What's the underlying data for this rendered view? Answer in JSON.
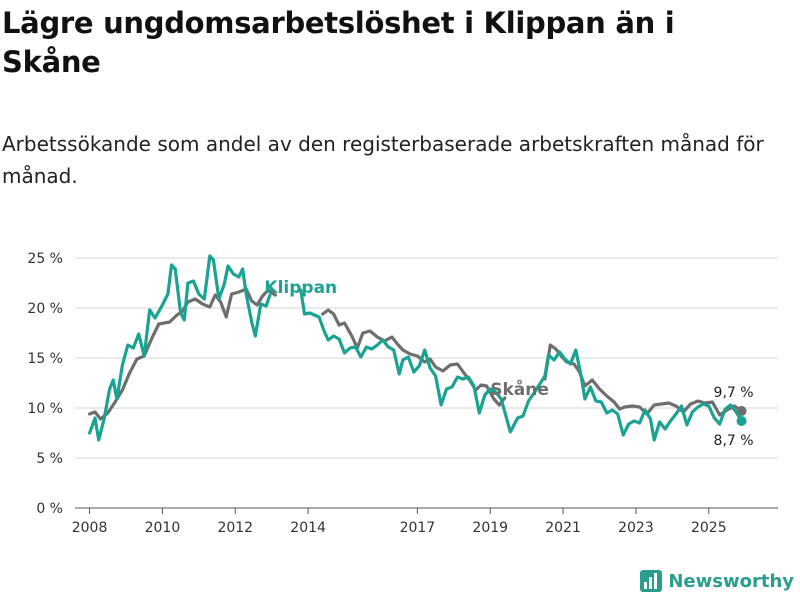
{
  "title": "Lägre ungdomsarbetslöshet i Klippan än i Skåne",
  "subtitle": "Arbetssökande som andel av den registerbaserade arbetskraften månad för månad.",
  "brand": "Newsworthy",
  "colors": {
    "klippan": "#1aa393",
    "skane": "#6e6e6e",
    "grid": "#d4d4d4"
  },
  "chart_data": {
    "type": "line",
    "title": "Lägre ungdomsarbetslöshet i Klippan än i Skåne",
    "xlabel": "",
    "ylabel": "",
    "ylim": [
      0,
      25
    ],
    "xlim": [
      2007.6,
      2026.9
    ],
    "y_ticks": [
      0,
      5,
      10,
      15,
      20,
      25
    ],
    "y_tick_labels": [
      "0 %",
      "5 %",
      "10 %",
      "15 %",
      "20 %",
      "25 %"
    ],
    "x_ticks": [
      2008,
      2010,
      2012,
      2014,
      2017,
      2019,
      2021,
      2023,
      2025
    ],
    "x_tick_labels": [
      "2008",
      "2010",
      "2012",
      "2014",
      "2017",
      "2019",
      "2021",
      "2023",
      "2025"
    ],
    "series": [
      {
        "name": "Skåne",
        "label": "Skåne",
        "end_label": "9,7 %",
        "points": [
          [
            2008.0,
            9.4
          ],
          [
            2008.15,
            9.6
          ],
          [
            2008.3,
            8.9
          ],
          [
            2008.5,
            9.5
          ],
          [
            2008.7,
            10.6
          ],
          [
            2008.9,
            11.8
          ],
          [
            2009.1,
            13.5
          ],
          [
            2009.3,
            14.9
          ],
          [
            2009.5,
            15.2
          ],
          [
            2009.7,
            16.9
          ],
          [
            2009.9,
            18.4
          ],
          [
            2010.2,
            18.6
          ],
          [
            2010.4,
            19.3
          ],
          [
            2010.55,
            19.7
          ],
          [
            2010.7,
            20.6
          ],
          [
            2010.9,
            20.9
          ],
          [
            2011.1,
            20.4
          ],
          [
            2011.3,
            20.1
          ],
          [
            2011.45,
            21.3
          ],
          [
            2011.6,
            20.6
          ],
          [
            2011.75,
            19.1
          ],
          [
            2011.9,
            21.4
          ],
          [
            2012.1,
            21.6
          ],
          [
            2012.3,
            21.9
          ],
          [
            2012.45,
            20.7
          ],
          [
            2012.6,
            20.3
          ],
          [
            2012.75,
            21.2
          ],
          [
            2012.9,
            21.8
          ],
          [
            2013.1,
            21.3
          ],
          [
            2014.4,
            19.4
          ],
          [
            2014.55,
            19.8
          ],
          [
            2014.7,
            19.4
          ],
          [
            2014.85,
            18.3
          ],
          [
            2015.0,
            18.5
          ],
          [
            2015.2,
            17.2
          ],
          [
            2015.35,
            16.0
          ],
          [
            2015.5,
            17.5
          ],
          [
            2015.7,
            17.7
          ],
          [
            2015.9,
            17.1
          ],
          [
            2016.1,
            16.7
          ],
          [
            2016.3,
            17.1
          ],
          [
            2016.45,
            16.4
          ],
          [
            2016.6,
            15.8
          ],
          [
            2016.8,
            15.4
          ],
          [
            2017.0,
            15.2
          ],
          [
            2017.2,
            14.6
          ],
          [
            2017.35,
            14.9
          ],
          [
            2017.5,
            14.1
          ],
          [
            2017.7,
            13.7
          ],
          [
            2017.9,
            14.3
          ],
          [
            2018.1,
            14.4
          ],
          [
            2018.3,
            13.4
          ],
          [
            2018.45,
            12.7
          ],
          [
            2018.6,
            11.8
          ],
          [
            2018.75,
            12.3
          ],
          [
            2018.9,
            12.2
          ],
          [
            2019.1,
            10.9
          ],
          [
            2019.25,
            10.3
          ],
          [
            2019.4,
            11.0
          ],
          [
            2020.5,
            12.9
          ],
          [
            2020.65,
            16.3
          ],
          [
            2020.8,
            15.9
          ],
          [
            2020.95,
            15.2
          ],
          [
            2021.1,
            14.6
          ],
          [
            2021.3,
            14.4
          ],
          [
            2021.45,
            13.6
          ],
          [
            2021.6,
            12.2
          ],
          [
            2021.8,
            12.8
          ],
          [
            2022.0,
            11.9
          ],
          [
            2022.2,
            11.2
          ],
          [
            2022.4,
            10.6
          ],
          [
            2022.55,
            9.9
          ],
          [
            2022.7,
            10.1
          ],
          [
            2022.9,
            10.2
          ],
          [
            2023.1,
            10.1
          ],
          [
            2023.3,
            9.4
          ],
          [
            2023.5,
            10.3
          ],
          [
            2023.7,
            10.4
          ],
          [
            2023.9,
            10.5
          ],
          [
            2024.1,
            10.2
          ],
          [
            2024.3,
            9.6
          ],
          [
            2024.5,
            10.4
          ],
          [
            2024.7,
            10.7
          ],
          [
            2024.9,
            10.5
          ],
          [
            2025.1,
            10.6
          ],
          [
            2025.3,
            9.3
          ],
          [
            2025.5,
            9.8
          ],
          [
            2025.7,
            10.2
          ],
          [
            2025.9,
            9.7
          ]
        ]
      },
      {
        "name": "Klippan",
        "label": "Klippan",
        "end_label": "8,7 %",
        "points": [
          [
            2008.0,
            7.5
          ],
          [
            2008.15,
            9.0
          ],
          [
            2008.25,
            6.8
          ],
          [
            2008.4,
            8.9
          ],
          [
            2008.55,
            11.9
          ],
          [
            2008.65,
            12.8
          ],
          [
            2008.75,
            10.9
          ],
          [
            2008.9,
            14.3
          ],
          [
            2009.05,
            16.3
          ],
          [
            2009.2,
            16.0
          ],
          [
            2009.35,
            17.4
          ],
          [
            2009.5,
            15.2
          ],
          [
            2009.65,
            19.8
          ],
          [
            2009.8,
            19.0
          ],
          [
            2010.0,
            20.3
          ],
          [
            2010.15,
            21.4
          ],
          [
            2010.25,
            24.3
          ],
          [
            2010.35,
            23.9
          ],
          [
            2010.5,
            19.5
          ],
          [
            2010.6,
            18.8
          ],
          [
            2010.7,
            22.5
          ],
          [
            2010.85,
            22.7
          ],
          [
            2011.0,
            21.4
          ],
          [
            2011.15,
            20.9
          ],
          [
            2011.3,
            25.2
          ],
          [
            2011.4,
            24.8
          ],
          [
            2011.55,
            20.9
          ],
          [
            2011.7,
            22.4
          ],
          [
            2011.8,
            24.2
          ],
          [
            2011.95,
            23.4
          ],
          [
            2012.1,
            23.1
          ],
          [
            2012.2,
            23.9
          ],
          [
            2012.3,
            21.4
          ],
          [
            2012.45,
            18.6
          ],
          [
            2012.55,
            17.2
          ],
          [
            2012.7,
            20.4
          ],
          [
            2012.85,
            20.2
          ],
          [
            2012.95,
            21.3
          ],
          [
            2013.8,
            21.8
          ],
          [
            2013.9,
            19.4
          ],
          [
            2014.05,
            19.5
          ],
          [
            2014.3,
            19.1
          ],
          [
            2014.45,
            17.6
          ],
          [
            2014.55,
            16.8
          ],
          [
            2014.7,
            17.2
          ],
          [
            2014.85,
            16.9
          ],
          [
            2015.0,
            15.5
          ],
          [
            2015.15,
            16.0
          ],
          [
            2015.3,
            16.1
          ],
          [
            2015.45,
            15.1
          ],
          [
            2015.6,
            16.1
          ],
          [
            2015.75,
            15.9
          ],
          [
            2015.9,
            16.3
          ],
          [
            2016.05,
            16.8
          ],
          [
            2016.2,
            16.1
          ],
          [
            2016.35,
            15.8
          ],
          [
            2016.5,
            13.4
          ],
          [
            2016.6,
            14.8
          ],
          [
            2016.75,
            15.1
          ],
          [
            2016.9,
            13.6
          ],
          [
            2017.05,
            14.2
          ],
          [
            2017.2,
            15.8
          ],
          [
            2017.35,
            14.0
          ],
          [
            2017.5,
            13.2
          ],
          [
            2017.65,
            10.3
          ],
          [
            2017.8,
            11.9
          ],
          [
            2017.95,
            12.1
          ],
          [
            2018.1,
            13.1
          ],
          [
            2018.25,
            12.9
          ],
          [
            2018.4,
            13.1
          ],
          [
            2018.55,
            12.2
          ],
          [
            2018.7,
            9.5
          ],
          [
            2018.85,
            11.3
          ],
          [
            2019.0,
            11.9
          ],
          [
            2019.15,
            11.6
          ],
          [
            2019.3,
            10.9
          ],
          [
            2019.55,
            7.6
          ],
          [
            2019.75,
            9.0
          ],
          [
            2019.9,
            9.2
          ],
          [
            2020.05,
            10.7
          ],
          [
            2020.2,
            11.5
          ],
          [
            2020.5,
            13.2
          ],
          [
            2020.6,
            15.3
          ],
          [
            2020.75,
            14.8
          ],
          [
            2020.9,
            15.6
          ],
          [
            2021.05,
            14.9
          ],
          [
            2021.2,
            14.4
          ],
          [
            2021.35,
            15.8
          ],
          [
            2021.5,
            13.1
          ],
          [
            2021.6,
            10.9
          ],
          [
            2021.75,
            12.1
          ],
          [
            2021.9,
            10.7
          ],
          [
            2022.05,
            10.6
          ],
          [
            2022.2,
            9.5
          ],
          [
            2022.35,
            9.8
          ],
          [
            2022.5,
            9.4
          ],
          [
            2022.65,
            7.3
          ],
          [
            2022.8,
            8.4
          ],
          [
            2022.95,
            8.7
          ],
          [
            2023.1,
            8.5
          ],
          [
            2023.25,
            9.8
          ],
          [
            2023.4,
            8.9
          ],
          [
            2023.5,
            6.8
          ],
          [
            2023.65,
            8.6
          ],
          [
            2023.8,
            7.9
          ],
          [
            2023.95,
            8.7
          ],
          [
            2024.1,
            9.4
          ],
          [
            2024.25,
            10.2
          ],
          [
            2024.4,
            8.3
          ],
          [
            2024.55,
            9.6
          ],
          [
            2024.7,
            10.1
          ],
          [
            2024.85,
            10.4
          ],
          [
            2025.0,
            10.2
          ],
          [
            2025.15,
            9.0
          ],
          [
            2025.3,
            8.4
          ],
          [
            2025.45,
            9.9
          ],
          [
            2025.6,
            10.3
          ],
          [
            2025.75,
            9.6
          ],
          [
            2025.9,
            8.7
          ]
        ]
      }
    ]
  }
}
